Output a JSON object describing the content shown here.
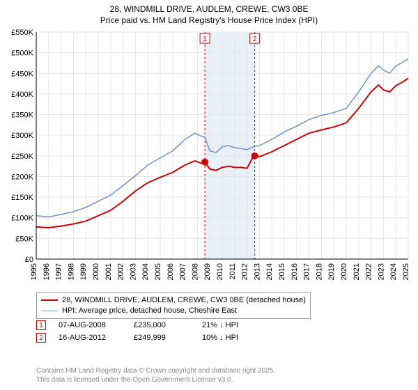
{
  "title_line1": "28, WINDMILL DRIVE, AUDLEM, CREWE, CW3 0BE",
  "title_line2": "Price paid vs. HM Land Registry's House Price Index (HPI)",
  "chart": {
    "type": "line",
    "background_color": "#ffffff",
    "grid_color": "#e6e6e6",
    "axis_color": "#000000",
    "plot_bg_band_color": "#eaf0f8",
    "x": {
      "min": 1995,
      "max": 2025,
      "ticks": [
        1995,
        1996,
        1997,
        1998,
        1999,
        2000,
        2001,
        2002,
        2003,
        2004,
        2005,
        2006,
        2007,
        2008,
        2009,
        2010,
        2011,
        2012,
        2013,
        2014,
        2015,
        2016,
        2017,
        2018,
        2019,
        2020,
        2021,
        2022,
        2023,
        2024,
        2025
      ],
      "tick_fontsize": 11,
      "rotation": -90
    },
    "y": {
      "min": 0,
      "max": 550000,
      "ticks": [
        0,
        50000,
        100000,
        150000,
        200000,
        250000,
        300000,
        350000,
        400000,
        450000,
        500000,
        550000
      ],
      "tick_labels": [
        "£0",
        "£50K",
        "£100K",
        "£150K",
        "£200K",
        "£250K",
        "£300K",
        "£350K",
        "£400K",
        "£450K",
        "£500K",
        "£550K"
      ],
      "tick_fontsize": 11
    },
    "shaded_band": {
      "x_from": 2008.6,
      "x_to": 2012.62
    },
    "sale_lines": [
      {
        "x": 2008.6,
        "label": "1",
        "line_color": "#cc0000",
        "dash": "3,3"
      },
      {
        "x": 2012.62,
        "label": "2",
        "line_color": "#cc0000",
        "dash": "3,3"
      }
    ],
    "series": [
      {
        "name": "property",
        "label": "28, WINDMILL DRIVE, AUDLEM, CREWE, CW3 0BE (detached house)",
        "color": "#cc0000",
        "line_width": 2,
        "points": [
          [
            1995.0,
            78000
          ],
          [
            1996.0,
            76000
          ],
          [
            1997.0,
            80000
          ],
          [
            1998.0,
            85000
          ],
          [
            1999.0,
            92000
          ],
          [
            2000.0,
            105000
          ],
          [
            2001.0,
            118000
          ],
          [
            2002.0,
            140000
          ],
          [
            2003.0,
            165000
          ],
          [
            2004.0,
            185000
          ],
          [
            2005.0,
            198000
          ],
          [
            2006.0,
            210000
          ],
          [
            2007.0,
            228000
          ],
          [
            2007.8,
            238000
          ],
          [
            2008.3,
            232000
          ],
          [
            2008.6,
            235000
          ],
          [
            2009.0,
            218000
          ],
          [
            2009.5,
            215000
          ],
          [
            2010.0,
            222000
          ],
          [
            2010.5,
            225000
          ],
          [
            2011.0,
            222000
          ],
          [
            2011.5,
            222000
          ],
          [
            2012.0,
            220000
          ],
          [
            2012.5,
            248000
          ],
          [
            2012.62,
            249999
          ],
          [
            2013.0,
            248000
          ],
          [
            2014.0,
            260000
          ],
          [
            2015.0,
            275000
          ],
          [
            2016.0,
            290000
          ],
          [
            2017.0,
            305000
          ],
          [
            2018.0,
            313000
          ],
          [
            2019.0,
            320000
          ],
          [
            2020.0,
            330000
          ],
          [
            2021.0,
            365000
          ],
          [
            2022.0,
            405000
          ],
          [
            2022.6,
            422000
          ],
          [
            2023.0,
            410000
          ],
          [
            2023.5,
            405000
          ],
          [
            2024.0,
            420000
          ],
          [
            2024.5,
            428000
          ],
          [
            2025.0,
            438000
          ]
        ],
        "markers": [
          {
            "x": 2008.6,
            "y": 235000,
            "size": 5
          },
          {
            "x": 2012.62,
            "y": 249999,
            "size": 5
          }
        ]
      },
      {
        "name": "hpi",
        "label": "HPI: Average price, detached house, Cheshire East",
        "color": "#6b93c9",
        "line_width": 1.5,
        "points": [
          [
            1995.0,
            105000
          ],
          [
            1996.0,
            102000
          ],
          [
            1997.0,
            108000
          ],
          [
            1998.0,
            115000
          ],
          [
            1999.0,
            125000
          ],
          [
            2000.0,
            140000
          ],
          [
            2001.0,
            155000
          ],
          [
            2002.0,
            178000
          ],
          [
            2003.0,
            202000
          ],
          [
            2004.0,
            228000
          ],
          [
            2005.0,
            245000
          ],
          [
            2006.0,
            262000
          ],
          [
            2007.0,
            290000
          ],
          [
            2007.8,
            305000
          ],
          [
            2008.3,
            298000
          ],
          [
            2008.6,
            295000
          ],
          [
            2009.0,
            262000
          ],
          [
            2009.5,
            258000
          ],
          [
            2010.0,
            272000
          ],
          [
            2010.5,
            275000
          ],
          [
            2011.0,
            270000
          ],
          [
            2011.5,
            268000
          ],
          [
            2012.0,
            265000
          ],
          [
            2012.5,
            272000
          ],
          [
            2013.0,
            275000
          ],
          [
            2014.0,
            290000
          ],
          [
            2015.0,
            308000
          ],
          [
            2016.0,
            322000
          ],
          [
            2017.0,
            338000
          ],
          [
            2018.0,
            348000
          ],
          [
            2019.0,
            355000
          ],
          [
            2020.0,
            365000
          ],
          [
            2021.0,
            405000
          ],
          [
            2022.0,
            450000
          ],
          [
            2022.6,
            468000
          ],
          [
            2023.0,
            458000
          ],
          [
            2023.5,
            450000
          ],
          [
            2024.0,
            468000
          ],
          [
            2024.5,
            476000
          ],
          [
            2025.0,
            485000
          ]
        ]
      }
    ]
  },
  "legend": {
    "items": [
      {
        "color": "#cc0000",
        "label": "28, WINDMILL DRIVE, AUDLEM, CREWE, CW3 0BE (detached house)",
        "line_width": 2
      },
      {
        "color": "#6b93c9",
        "label": "HPI: Average price, detached house, Cheshire East",
        "line_width": 1.5
      }
    ]
  },
  "sales": [
    {
      "marker": "1",
      "date": "07-AUG-2008",
      "price": "£235,000",
      "hpi": "21% ↓ HPI"
    },
    {
      "marker": "2",
      "date": "16-AUG-2012",
      "price": "£249,999",
      "hpi": "10% ↓ HPI"
    }
  ],
  "footer": {
    "line1": "Contains HM Land Registry data © Crown copyright and database right 2025.",
    "line2": "This data is licensed under the Open Government Licence v3.0."
  }
}
